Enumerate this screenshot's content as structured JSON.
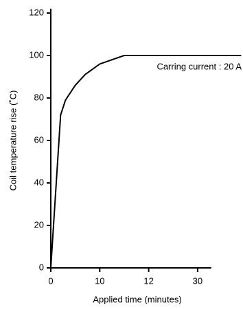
{
  "chart_data": {
    "type": "line",
    "x_label": "Applied time (minutes)",
    "y_label": "Coil temperature rise (˚C)",
    "annotation": "Carring current : 20 A",
    "x": [
      0,
      2,
      3,
      5,
      7,
      10,
      11,
      20,
      46
    ],
    "series": [
      {
        "color": "#000000",
        "values": [
          0,
          72,
          79,
          86,
          91,
          96,
          100,
          100,
          100
        ]
      }
    ],
    "xlim": [
      0,
      35
    ],
    "xticks": [
      0,
      10,
      12,
      30
    ],
    "ylim": [
      0,
      122
    ],
    "yticks": [
      0,
      20,
      40,
      60,
      80,
      100,
      120
    ]
  }
}
